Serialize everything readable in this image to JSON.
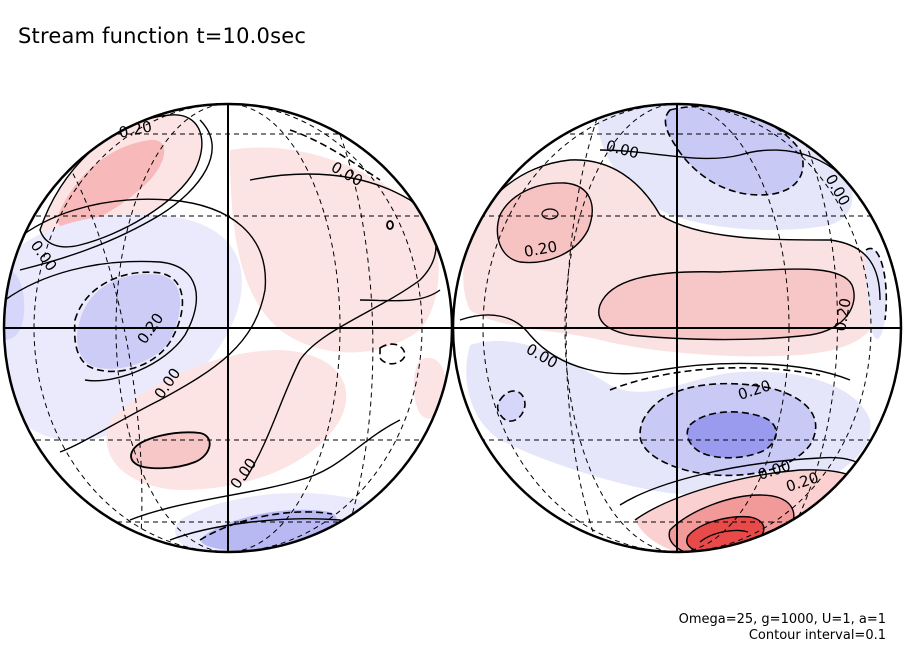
{
  "chart_data": {
    "type": "contour",
    "title": "Stream function t=10.0sec",
    "projection": "orthographic, two hemispheres",
    "contour_interval": 0.1,
    "colors": {
      "positive": "#e83a3a",
      "negative": "#3a3ae8",
      "line": "#000000"
    },
    "parameters": {
      "line1": "Omega=25, g=1000, U=1, a=1",
      "line2": "Contour interval=0.1"
    },
    "hemispheres": [
      {
        "name": "left",
        "contour_labels": [
          "0.20",
          "0.00",
          "0.00",
          "0.20",
          "0.00",
          "0.00"
        ],
        "features": [
          {
            "sign": "positive",
            "value": 0.2,
            "region": "upper-left"
          },
          {
            "sign": "negative",
            "value": -0.2,
            "region": "left-center"
          },
          {
            "sign": "positive",
            "value": 0.1,
            "region": "lower-center"
          },
          {
            "sign": "negative",
            "value": -0.2,
            "region": "bottom"
          }
        ]
      },
      {
        "name": "right",
        "contour_labels": [
          "0.00",
          "0.00",
          "0.20",
          "0.20",
          "0.00",
          "0.20",
          "0.00",
          "0.20"
        ],
        "features": [
          {
            "sign": "negative",
            "value": -0.2,
            "region": "top"
          },
          {
            "sign": "positive",
            "value": 0.2,
            "region": "upper-left"
          },
          {
            "sign": "positive",
            "value": 0.1,
            "region": "center band"
          },
          {
            "sign": "negative",
            "value": -0.5,
            "region": "lower-center"
          },
          {
            "sign": "positive",
            "value": 0.6,
            "region": "bottom"
          }
        ]
      }
    ]
  }
}
